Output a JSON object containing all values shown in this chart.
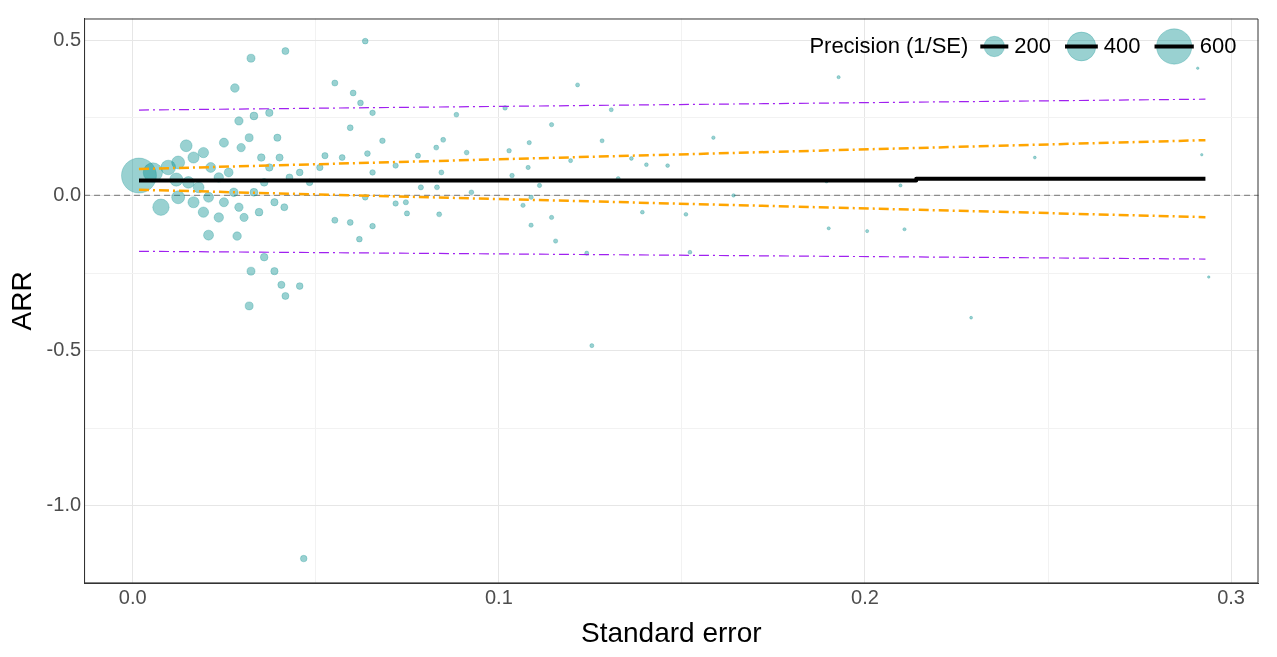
{
  "chart_data": {
    "type": "bubble",
    "xlabel": "Standard error",
    "ylabel": "ARR",
    "legend_title": "Precision (1/SE)",
    "size_legend": [
      200,
      400,
      600
    ],
    "grid": true,
    "xlim": [
      -0.0133,
      0.3075
    ],
    "ylim": [
      -1.25,
      0.57
    ],
    "xticks": [
      {
        "value": 0,
        "label": "0.0"
      },
      {
        "value": 0.05,
        "label": null
      },
      {
        "value": 0.1,
        "label": "0.1"
      },
      {
        "value": 0.15,
        "label": null
      },
      {
        "value": 0.2,
        "label": "0.2"
      },
      {
        "value": 0.25,
        "label": null
      },
      {
        "value": 0.3,
        "label": "0.3"
      }
    ],
    "yticks": [
      {
        "value": -1,
        "label": "-1.0"
      },
      {
        "value": -0.75,
        "label": null
      },
      {
        "value": -0.5,
        "label": "-0.5"
      },
      {
        "value": -0.25,
        "label": null
      },
      {
        "value": 0,
        "label": "0.0"
      },
      {
        "value": 0.25,
        "label": null
      },
      {
        "value": 0.5,
        "label": "0.5"
      }
    ],
    "ref_lines": [
      {
        "axis": "y",
        "value": 0,
        "color": "#8c8c8c",
        "line_style": "dashed"
      }
    ],
    "series": [
      {
        "color": "#008b8b",
        "marker": "circle",
        "x": [
          0.0017,
          0.0077,
          0.0055,
          0.0097,
          0.0124,
          0.0146,
          0.0166,
          0.0193,
          0.0213,
          0.0235,
          0.0262,
          0.0296,
          0.0318,
          0.0249,
          0.0152,
          0.018,
          0.0207,
          0.0249,
          0.0276,
          0.0331,
          0.0359,
          0.0373,
          0.0401,
          0.0428,
          0.0456,
          0.0483,
          0.0511,
          0.0119,
          0.0124,
          0.0166,
          0.0193,
          0.0235,
          0.029,
          0.0345,
          0.0387,
          0.0414,
          0.0304,
          0.0351,
          0.0395,
          0.029,
          0.0331,
          0.0373,
          0.0279,
          0.0323,
          0.0417,
          0.0359,
          0.0387,
          0.0285,
          0.0207,
          0.0318,
          0.0417,
          0.0406,
          0.0456,
          0.0323,
          0.0635,
          0.0552,
          0.0602,
          0.0622,
          0.0655,
          0.0594,
          0.0525,
          0.0572,
          0.0641,
          0.0682,
          0.0655,
          0.0718,
          0.0779,
          0.0787,
          0.0746,
          0.0635,
          0.0552,
          0.0594,
          0.0619,
          0.0655,
          0.0718,
          0.0749,
          0.0837,
          0.0843,
          0.0848,
          0.0884,
          0.0912,
          0.0829,
          0.0925,
          0.1017,
          0.1036,
          0.1088,
          0.1066,
          0.1088,
          0.1083,
          0.1144,
          0.1028,
          0.108,
          0.1144,
          0.1155,
          0.1196,
          0.1282,
          0.1326,
          0.1362,
          0.1392,
          0.1403,
          0.1461,
          0.1522,
          0.1511,
          0.1215,
          0.1254,
          0.124,
          0.1307,
          0.1641,
          0.1586,
          0.1895,
          0.1901,
          0.1928,
          0.2006,
          0.2097,
          0.2108,
          0.229,
          0.2464,
          0.2909,
          0.292,
          0.2939,
          0.0467,
          0.0831,
          0.1111
        ],
        "values": [
          0.064,
          -0.038,
          0.074,
          0.09,
          0.106,
          0.16,
          0.122,
          0.138,
          0.09,
          0.058,
          0.074,
          0.154,
          0.186,
          0.17,
          0.042,
          0.026,
          -0.006,
          -0.022,
          0.01,
          0.01,
          0.042,
          0.09,
          0.122,
          0.058,
          0.074,
          0.042,
          0.09,
          0.051,
          -0.006,
          -0.022,
          -0.054,
          -0.071,
          -0.038,
          -0.054,
          -0.022,
          -0.038,
          -0.071,
          0.122,
          0.186,
          0.24,
          0.256,
          0.266,
          0.346,
          0.442,
          0.465,
          -0.199,
          -0.244,
          -0.131,
          -0.128,
          -0.356,
          -0.324,
          -0.288,
          -0.292,
          -0.244,
          0.497,
          0.362,
          0.33,
          0.298,
          0.266,
          0.218,
          0.128,
          0.122,
          0.135,
          0.176,
          0.074,
          0.096,
          0.128,
          0.026,
          -0.022,
          -0.006,
          -0.08,
          -0.087,
          -0.141,
          -0.099,
          -0.026,
          -0.058,
          -0.061,
          0.074,
          0.179,
          0.26,
          0.138,
          0.154,
          0.01,
          0.282,
          0.064,
          -0.096,
          -0.032,
          -0.006,
          0.17,
          0.228,
          0.144,
          0.09,
          -0.071,
          -0.147,
          0.112,
          0.176,
          0.054,
          0.119,
          -0.054,
          0.099,
          0.096,
          -0.183,
          -0.061,
          0.356,
          -0.484,
          -0.186,
          0.276,
          0,
          0.186,
          0.045,
          -0.106,
          0.381,
          -0.115,
          0.032,
          -0.109,
          -0.394,
          0.122,
          0.41,
          0.131,
          -0.263,
          -1.17,
          0.026,
          0.032
        ],
        "sizes": [
          590,
          130,
          180,
          103,
          81,
          68,
          60,
          52,
          47,
          43,
          38,
          34,
          31,
          40,
          66,
          56,
          48,
          40,
          36,
          30,
          28,
          27,
          25,
          23,
          22,
          21,
          20,
          84,
          81,
          60,
          52,
          43,
          34,
          29,
          26,
          24,
          33,
          28,
          25,
          34,
          30,
          27,
          36,
          31,
          24,
          28,
          26,
          35,
          48,
          31,
          24,
          25,
          22,
          31,
          16,
          18,
          17,
          16,
          15,
          17,
          19,
          17,
          16,
          15,
          15,
          14,
          13,
          13,
          13,
          16,
          18,
          17,
          16,
          15,
          14,
          13,
          12,
          12,
          12,
          11,
          11,
          12,
          11,
          10,
          10,
          9,
          9,
          9,
          9,
          9,
          10,
          9,
          9,
          9,
          8,
          8,
          8,
          7,
          7,
          7,
          7,
          7,
          7,
          8,
          8,
          8,
          8,
          6,
          6,
          5,
          5,
          5,
          5,
          5,
          5,
          4,
          4,
          3,
          3,
          3,
          21,
          12,
          9
        ]
      },
      {
        "type": "line",
        "color": "#000000",
        "x": [
          0.0017,
          0.214,
          0.214,
          0.293
        ],
        "values": [
          0.048,
          0.048,
          0.054,
          0.054
        ]
      },
      {
        "type": "line",
        "color": "#ffa500",
        "line_style": "dashed",
        "x": [
          0.0017,
          0.293
        ],
        "values": [
          0.085,
          0.178
        ]
      },
      {
        "type": "line",
        "color": "#ffa500",
        "line_style": "dashed",
        "x": [
          0.0017,
          0.293
        ],
        "values": [
          0.018,
          -0.07
        ]
      },
      {
        "type": "line",
        "color": "#a020f0",
        "line_style": "dashed",
        "x": [
          0.0017,
          0.293
        ],
        "values": [
          0.275,
          0.31
        ]
      },
      {
        "type": "line",
        "color": "#a020f0",
        "line_style": "dashed",
        "x": [
          0.0017,
          0.293
        ],
        "values": [
          -0.18,
          -0.205
        ]
      }
    ]
  }
}
